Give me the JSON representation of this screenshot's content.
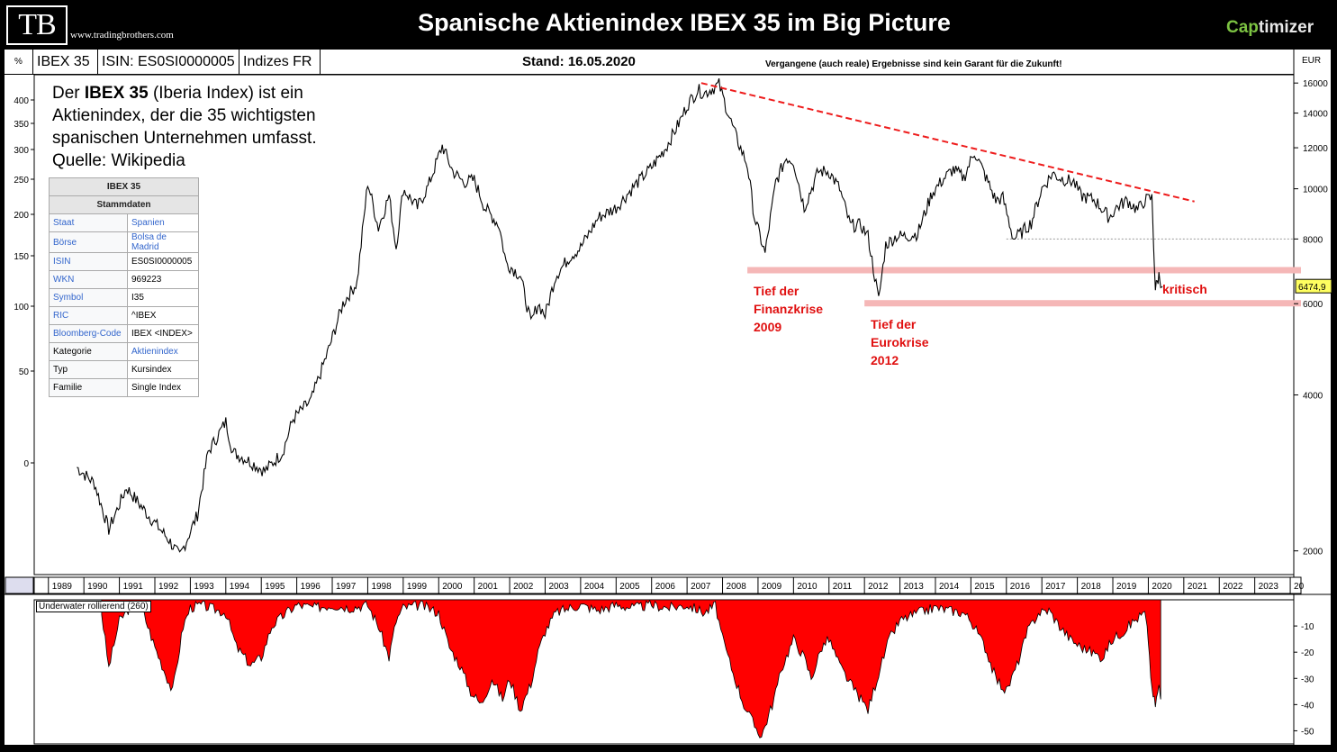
{
  "header": {
    "logo": "TB",
    "site": "www.tradingbrothers.com",
    "title": "Spanische Aktienindex IBEX 35 im Big Picture",
    "brand_a": "Cap",
    "brand_b": "timizer"
  },
  "infobar": {
    "percent": "%",
    "name": "IBEX 35",
    "isin": "ISIN: ES0SI0000005",
    "market": "Indizes FR",
    "stand": "Stand: 16.05.2020",
    "disclaimer": "Vergangene (auch reale) Ergebnisse sind kein Garant für die Zukunft!",
    "currency": "EUR"
  },
  "description": {
    "pre": "Der ",
    "bold": "IBEX 35",
    "post": " (Iberia Index) ist ein Aktienindex, der die 35 wichtigsten spanischen Unternehmen umfasst.",
    "source": "Quelle: Wikipedia"
  },
  "infobox": {
    "title": "IBEX 35",
    "subtitle": "Stammdaten",
    "rows": [
      {
        "k": "Staat",
        "v": "Spanien",
        "klink": true,
        "vlink": true
      },
      {
        "k": "Börse",
        "v": "Bolsa de Madrid",
        "klink": true,
        "vlink": true
      },
      {
        "k": "ISIN",
        "v": "ES0SI0000005",
        "klink": true,
        "vlink": false
      },
      {
        "k": "WKN",
        "v": "969223",
        "klink": true,
        "vlink": false
      },
      {
        "k": "Symbol",
        "v": "I35",
        "klink": true,
        "vlink": false
      },
      {
        "k": "RIC",
        "v": "^IBEX",
        "klink": true,
        "vlink": false
      },
      {
        "k": "Bloomberg-Code",
        "v": "IBEX <INDEX>",
        "klink": true,
        "vlink": false
      },
      {
        "k": "Kategorie",
        "v": "Aktienindex",
        "klink": false,
        "vlink": true
      },
      {
        "k": "Typ",
        "v": "Kursindex",
        "klink": false,
        "vlink": false
      },
      {
        "k": "Familie",
        "v": "Single Index",
        "klink": false,
        "vlink": false
      }
    ]
  },
  "annotations": {
    "tief1": [
      "Tief der",
      "Finanzkrise",
      "2009"
    ],
    "tief2": [
      "Tief der",
      "Eurokrise",
      "2012"
    ],
    "kritisch": "kritisch",
    "price_tag": "6474,9"
  },
  "underwater_label": "Underwater rollierend (260)",
  "chart_data": [
    {
      "type": "line",
      "title": "Spanische Aktienindex IBEX 35 im Big Picture",
      "series": [
        {
          "name": "IBEX 35",
          "x": [
            1989.8,
            1990.3,
            1990.7,
            1991.2,
            1991.8,
            1992.4,
            1992.7,
            1993.2,
            1993.5,
            1994.0,
            1994.2,
            1994.6,
            1995.1,
            1995.6,
            1995.9,
            1996.4,
            1996.9,
            1997.3,
            1997.7,
            1998.0,
            1998.3,
            1998.6,
            1998.8,
            1999.0,
            1999.4,
            1999.7,
            2000.1,
            2000.4,
            2000.7,
            2001.0,
            2001.3,
            2001.7,
            2001.9,
            2002.3,
            2002.6,
            2002.8,
            2003.0,
            2003.3,
            2003.7,
            2004.0,
            2004.5,
            2005.0,
            2005.5,
            2006.0,
            2006.4,
            2006.8,
            2007.0,
            2007.3,
            2007.5,
            2007.9,
            2008.2,
            2008.4,
            2008.7,
            2008.9,
            2009.2,
            2009.5,
            2009.8,
            2010.0,
            2010.3,
            2010.7,
            2011.0,
            2011.3,
            2011.6,
            2011.9,
            2012.1,
            2012.4,
            2012.6,
            2012.9,
            2013.2,
            2013.5,
            2013.9,
            2014.2,
            2014.5,
            2014.8,
            2015.1,
            2015.3,
            2015.7,
            2015.9,
            2016.2,
            2016.4,
            2016.7,
            2017.0,
            2017.3,
            2017.5,
            2017.9,
            2018.1,
            2018.5,
            2018.9,
            2019.1,
            2019.4,
            2019.7,
            2019.9,
            2020.1,
            2020.2,
            2020.3,
            2020.4
          ],
          "values": [
            2900,
            2700,
            2200,
            2650,
            2350,
            2100,
            1950,
            2350,
            3100,
            3550,
            3100,
            3000,
            2850,
            3100,
            3600,
            3900,
            4900,
            6000,
            6600,
            10300,
            8400,
            9700,
            7700,
            10000,
            9200,
            10100,
            12100,
            10800,
            10300,
            10400,
            9200,
            8500,
            7200,
            6800,
            5500,
            6000,
            5700,
            6800,
            7400,
            7700,
            8800,
            9200,
            10100,
            11000,
            12000,
            13500,
            14500,
            15500,
            15300,
            15900,
            13700,
            12500,
            11100,
            8800,
            7500,
            10300,
            11500,
            11300,
            9200,
            10800,
            10800,
            10000,
            8500,
            8500,
            8100,
            6100,
            7800,
            8100,
            8100,
            8200,
            9800,
            10400,
            10900,
            10500,
            11800,
            11000,
            9500,
            9600,
            8000,
            8200,
            8600,
            10000,
            10700,
            10500,
            10300,
            9700,
            9500,
            8800,
            9200,
            9500,
            9100,
            9500,
            9600,
            6400,
            6800,
            6475
          ]
        }
      ],
      "y_axis_right": {
        "scale": "log",
        "unit": "EUR",
        "ticks": [
          2000,
          4000,
          6000,
          8000,
          10000,
          12000,
          14000,
          16000
        ]
      },
      "y_axis_left": {
        "unit": "%",
        "ticks": [
          0,
          50,
          100,
          150,
          200,
          250,
          300,
          350,
          400
        ]
      },
      "x_ticks": [
        "1989",
        "1990",
        "1991",
        "1992",
        "1993",
        "1994",
        "1995",
        "1996",
        "1997",
        "1998",
        "1999",
        "2000",
        "2001",
        "2002",
        "2003",
        "2004",
        "2005",
        "2006",
        "2007",
        "2008",
        "2009",
        "2010",
        "2011",
        "2012",
        "2013",
        "2014",
        "2015",
        "2016",
        "2017",
        "2018",
        "2019",
        "2020",
        "2021",
        "2022",
        "2023",
        "20"
      ],
      "trendline": {
        "from": [
          2007.4,
          16000
        ],
        "to": [
          2021.3,
          9450
        ],
        "color": "#ee1c1c"
      },
      "support_zones": [
        {
          "from_x": 2008.7,
          "value": 6950
        },
        {
          "from_x": 2012.0,
          "value": 6000
        }
      ],
      "reference_line": {
        "from_x": 2016.0,
        "value": 8000
      },
      "last_value": 6474.9
    },
    {
      "type": "area",
      "title": "Underwater rollierend (260)",
      "x": [
        1990.5,
        1990.7,
        1991.0,
        1991.3,
        1991.6,
        1992.0,
        1992.5,
        1992.8,
        1993.0,
        1993.3,
        1994.0,
        1994.3,
        1994.7,
        1995.0,
        1995.3,
        1995.7,
        1996.0,
        1996.5,
        1997.0,
        1997.5,
        1998.0,
        1998.3,
        1998.6,
        1998.8,
        1999.0,
        1999.5,
        2000.0,
        2000.3,
        2000.6,
        2000.9,
        2001.2,
        2001.5,
        2001.8,
        2002.0,
        2002.3,
        2002.6,
        2002.8,
        2003.0,
        2003.3,
        2003.7,
        2004.0,
        2004.5,
        2005.0,
        2005.5,
        2006.0,
        2006.5,
        2007.0,
        2007.5,
        2007.8,
        2008.0,
        2008.3,
        2008.6,
        2008.9,
        2009.1,
        2009.4,
        2009.7,
        2010.0,
        2010.3,
        2010.5,
        2010.8,
        2011.0,
        2011.3,
        2011.6,
        2011.9,
        2012.1,
        2012.4,
        2012.7,
        2013.0,
        2013.5,
        2014.0,
        2014.4,
        2014.8,
        2015.0,
        2015.4,
        2015.7,
        2016.0,
        2016.3,
        2016.6,
        2016.9,
        2017.2,
        2017.5,
        2017.8,
        2018.1,
        2018.4,
        2018.7,
        2019.0,
        2019.3,
        2019.6,
        2019.9,
        2020.0,
        2020.1,
        2020.2,
        2020.3,
        2020.35
      ],
      "values": [
        -5,
        -26,
        -8,
        -3,
        -2,
        -18,
        -35,
        -10,
        -3,
        -2,
        -5,
        -18,
        -25,
        -22,
        -10,
        -5,
        -2,
        -3,
        -2,
        -3,
        -2,
        -10,
        -22,
        -8,
        -3,
        -2,
        -5,
        -18,
        -25,
        -35,
        -40,
        -30,
        -38,
        -30,
        -42,
        -32,
        -20,
        -12,
        -5,
        -3,
        -2,
        -4,
        -2,
        -3,
        -2,
        -3,
        -2,
        -5,
        -2,
        -15,
        -28,
        -40,
        -48,
        -52,
        -40,
        -25,
        -15,
        -22,
        -30,
        -18,
        -15,
        -25,
        -32,
        -38,
        -42,
        -28,
        -15,
        -8,
        -5,
        -3,
        -4,
        -5,
        -8,
        -18,
        -30,
        -35,
        -25,
        -12,
        -5,
        -4,
        -10,
        -15,
        -18,
        -20,
        -22,
        -15,
        -12,
        -8,
        -5,
        -15,
        -35,
        -40,
        -33,
        -38
      ],
      "y_ticks": [
        -10,
        -20,
        -30,
        -40,
        -50
      ]
    }
  ]
}
